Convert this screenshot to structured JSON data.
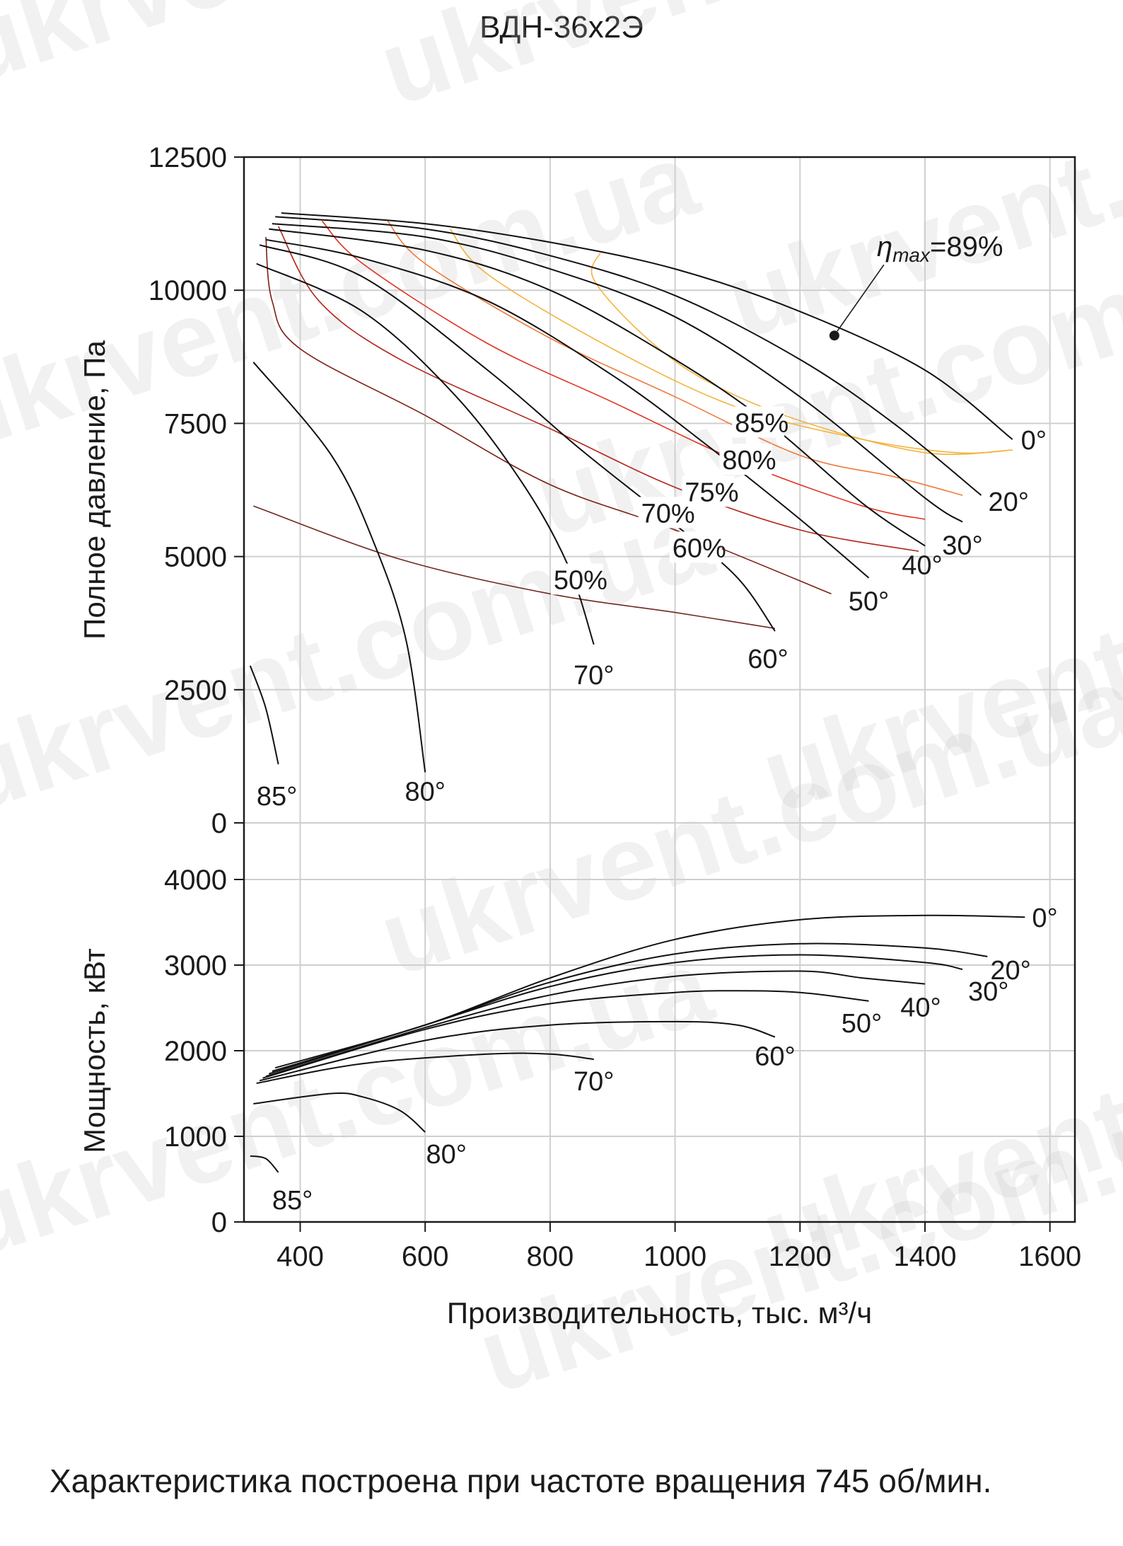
{
  "title": "ВДН-36х2Э",
  "note": "Характеристика построена при частоте вращения 745 об/мин.",
  "watermark": "ukrvent.com.ua",
  "colors": {
    "grid": "#cfcfcf",
    "axis": "#1b1b1b",
    "curve": "#111111",
    "eff50": "#6d2a1e",
    "eff60": "#7a1f12",
    "eff70": "#b2261a",
    "eff75": "#e0321f",
    "eff80": "#f07a3c",
    "eff85": "#f3b33c"
  },
  "chart_data": [
    {
      "type": "line",
      "title": "ВДН-36х2Э",
      "ylabel": "Полное давление, Па",
      "xlabel": "Производительность, тыс. м³/ч",
      "xlim": [
        310,
        1640
      ],
      "ylim": [
        0,
        12500
      ],
      "xticks": [
        400,
        600,
        800,
        1000,
        1200,
        1400,
        1600
      ],
      "yticks": [
        0,
        2500,
        5000,
        7500,
        10000,
        12500
      ],
      "grid": true,
      "annotation": {
        "label": "η",
        "subscript": "max",
        "text": "=89%",
        "x": 1255,
        "y": 9150
      },
      "series": [
        {
          "name": "0°",
          "points": [
            [
              370,
              11450
            ],
            [
              600,
              11250
            ],
            [
              800,
              10900
            ],
            [
              1000,
              10400
            ],
            [
              1200,
              9600
            ],
            [
              1400,
              8500
            ],
            [
              1540,
              7200
            ]
          ]
        },
        {
          "name": "20°",
          "points": [
            [
              360,
              11380
            ],
            [
              600,
              11150
            ],
            [
              800,
              10650
            ],
            [
              1000,
              9900
            ],
            [
              1200,
              8700
            ],
            [
              1350,
              7500
            ],
            [
              1490,
              6150
            ]
          ]
        },
        {
          "name": "30°",
          "points": [
            [
              355,
              11250
            ],
            [
              600,
              11000
            ],
            [
              800,
              10400
            ],
            [
              1000,
              9500
            ],
            [
              1200,
              8000
            ],
            [
              1400,
              6100
            ],
            [
              1460,
              5650
            ]
          ]
        },
        {
          "name": "40°",
          "points": [
            [
              350,
              11150
            ],
            [
              600,
              10750
            ],
            [
              800,
              10000
            ],
            [
              1000,
              8700
            ],
            [
              1150,
              7500
            ],
            [
              1300,
              6000
            ],
            [
              1400,
              5200
            ]
          ]
        },
        {
          "name": "50°",
          "points": [
            [
              345,
              10950
            ],
            [
              500,
              10600
            ],
            [
              700,
              9800
            ],
            [
              900,
              8400
            ],
            [
              1050,
              7100
            ],
            [
              1200,
              5700
            ],
            [
              1310,
              4600
            ]
          ]
        },
        {
          "name": "60°",
          "points": [
            [
              335,
              10850
            ],
            [
              500,
              10250
            ],
            [
              700,
              8500
            ],
            [
              850,
              7000
            ],
            [
              1000,
              5600
            ],
            [
              1100,
              4600
            ],
            [
              1160,
              3600
            ]
          ]
        },
        {
          "name": "70°",
          "points": [
            [
              330,
              10500
            ],
            [
              500,
              9600
            ],
            [
              650,
              8000
            ],
            [
              760,
              6300
            ],
            [
              830,
              4800
            ],
            [
              870,
              3350
            ]
          ]
        },
        {
          "name": "80°",
          "points": [
            [
              325,
              8650
            ],
            [
              450,
              6900
            ],
            [
              520,
              5200
            ],
            [
              570,
              3400
            ],
            [
              600,
              950
            ]
          ]
        },
        {
          "name": "85°",
          "points": [
            [
              320,
              2950
            ],
            [
              345,
              2150
            ],
            [
              365,
              1100
            ]
          ]
        }
      ],
      "efficiency": [
        {
          "name": "50%",
          "points": [
            [
              325,
              5950
            ],
            [
              560,
              4950
            ],
            [
              800,
              4300
            ],
            [
              1000,
              3950
            ],
            [
              1160,
              3650
            ]
          ]
        },
        {
          "name": "60%",
          "points": [
            [
              345,
              11000
            ],
            [
              355,
              9800
            ],
            [
              400,
              8900
            ],
            [
              600,
              7650
            ],
            [
              800,
              6350
            ],
            [
              1000,
              5500
            ],
            [
              1250,
              4300
            ]
          ]
        },
        {
          "name": "70%",
          "points": [
            [
              365,
              11200
            ],
            [
              430,
              9800
            ],
            [
              560,
              8700
            ],
            [
              800,
              7400
            ],
            [
              1000,
              6300
            ],
            [
              1200,
              5500
            ],
            [
              1390,
              5100
            ]
          ]
        },
        {
          "name": "75%",
          "points": [
            [
              435,
              11300
            ],
            [
              500,
              10500
            ],
            [
              700,
              9000
            ],
            [
              900,
              7900
            ],
            [
              1100,
              6800
            ],
            [
              1300,
              5950
            ],
            [
              1400,
              5700
            ]
          ]
        },
        {
          "name": "80%",
          "points": [
            [
              540,
              11300
            ],
            [
              600,
              10500
            ],
            [
              800,
              9100
            ],
            [
              1000,
              8000
            ],
            [
              1200,
              6900
            ],
            [
              1350,
              6500
            ],
            [
              1460,
              6150
            ]
          ]
        },
        {
          "name": "85%",
          "points": [
            [
              640,
              11150
            ],
            [
              700,
              10300
            ],
            [
              900,
              8900
            ],
            [
              1100,
              7800
            ],
            [
              1300,
              7200
            ],
            [
              1450,
              6950
            ],
            [
              1540,
              7000
            ]
          ]
        },
        {
          "name": "89%",
          "points": [
            [
              880,
              10700
            ],
            [
              870,
              10200
            ],
            [
              950,
              9150
            ],
            [
              1050,
              8300
            ],
            [
              1200,
              7550
            ],
            [
              1400,
              6950
            ],
            [
              1540,
              7000
            ]
          ]
        }
      ]
    },
    {
      "type": "line",
      "ylabel": "Мощность, кВт",
      "xlabel": "Производительность, тыс. м³/ч",
      "xlim": [
        310,
        1640
      ],
      "ylim": [
        0,
        4000
      ],
      "xticks": [
        400,
        600,
        800,
        1000,
        1200,
        1400,
        1600
      ],
      "yticks": [
        0,
        1000,
        2000,
        3000,
        4000
      ],
      "grid": true,
      "series": [
        {
          "name": "0°",
          "points": [
            [
              360,
              1800
            ],
            [
              600,
              2300
            ],
            [
              800,
              2850
            ],
            [
              1000,
              3300
            ],
            [
              1200,
              3530
            ],
            [
              1400,
              3580
            ],
            [
              1560,
              3560
            ]
          ]
        },
        {
          "name": "20°",
          "points": [
            [
              355,
              1760
            ],
            [
              600,
              2300
            ],
            [
              800,
              2800
            ],
            [
              1000,
              3130
            ],
            [
              1200,
              3250
            ],
            [
              1400,
              3200
            ],
            [
              1500,
              3100
            ]
          ]
        },
        {
          "name": "30°",
          "points": [
            [
              350,
              1730
            ],
            [
              600,
              2300
            ],
            [
              800,
              2750
            ],
            [
              1000,
              3030
            ],
            [
              1200,
              3120
            ],
            [
              1400,
              3030
            ],
            [
              1460,
              2950
            ]
          ]
        },
        {
          "name": "40°",
          "points": [
            [
              345,
              1700
            ],
            [
              600,
              2270
            ],
            [
              800,
              2650
            ],
            [
              1000,
              2870
            ],
            [
              1200,
              2930
            ],
            [
              1300,
              2850
            ],
            [
              1400,
              2780
            ]
          ]
        },
        {
          "name": "50°",
          "points": [
            [
              340,
              1680
            ],
            [
              600,
              2250
            ],
            [
              800,
              2550
            ],
            [
              1000,
              2680
            ],
            [
              1100,
              2700
            ],
            [
              1200,
              2680
            ],
            [
              1310,
              2580
            ]
          ]
        },
        {
          "name": "60°",
          "points": [
            [
              335,
              1650
            ],
            [
              600,
              2120
            ],
            [
              800,
              2300
            ],
            [
              1000,
              2340
            ],
            [
              1100,
              2300
            ],
            [
              1160,
              2160
            ]
          ]
        },
        {
          "name": "70°",
          "points": [
            [
              330,
              1620
            ],
            [
              500,
              1850
            ],
            [
              700,
              1960
            ],
            [
              800,
              1960
            ],
            [
              870,
              1900
            ]
          ]
        },
        {
          "name": "80°",
          "points": [
            [
              325,
              1380
            ],
            [
              450,
              1500
            ],
            [
              500,
              1460
            ],
            [
              560,
              1300
            ],
            [
              600,
              1050
            ]
          ]
        },
        {
          "name": "85°",
          "points": [
            [
              320,
              770
            ],
            [
              345,
              740
            ],
            [
              365,
              580
            ]
          ]
        }
      ]
    }
  ]
}
